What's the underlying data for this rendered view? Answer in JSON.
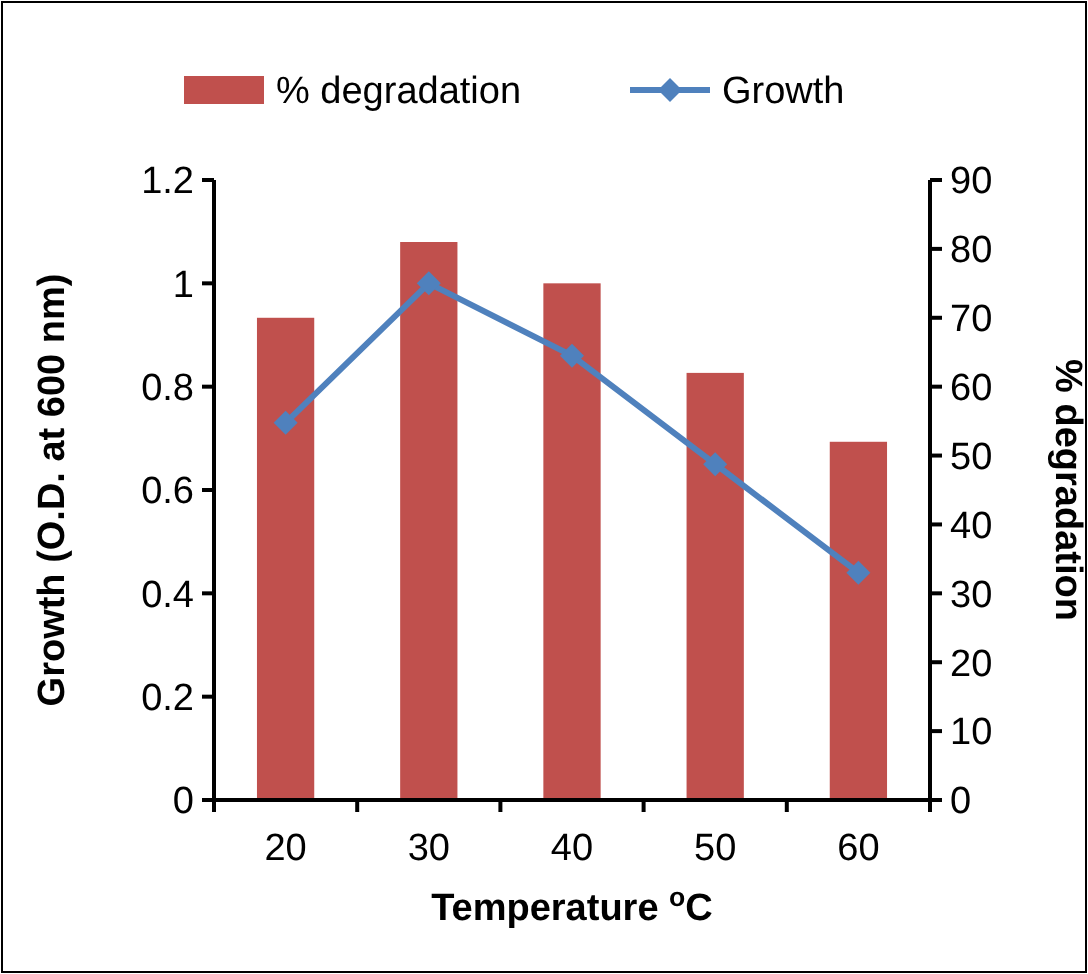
{
  "chart_data": {
    "type": "bar",
    "xlabel": "Temperature $^{o}$C",
    "ylabel": "Growth (O.D. at 600 nm)",
    "y2label": "% degradation",
    "categories": [
      "20",
      "30",
      "40",
      "50",
      "60"
    ],
    "series": [
      {
        "name": "% degradation",
        "axis": "y2",
        "color": "#c0504d",
        "values": [
          70,
          81,
          75,
          62,
          52
        ]
      },
      {
        "name": "Growth",
        "type": "line",
        "axis": "y",
        "color": "#4f81bd",
        "marker": "diamond",
        "values": [
          0.73,
          1.0,
          0.86,
          0.65,
          0.44
        ]
      }
    ],
    "ylim": [
      0,
      1.2
    ],
    "yticks": [
      {
        "value": 0,
        "label": "0"
      },
      {
        "value": 0.2,
        "label": "0.2"
      },
      {
        "value": 0.4,
        "label": "0.4"
      },
      {
        "value": 0.6,
        "label": "0.6"
      },
      {
        "value": 0.8,
        "label": "0.8"
      },
      {
        "value": 1,
        "label": "1"
      },
      {
        "value": 1.2,
        "label": "1.2"
      }
    ],
    "y2lim": [
      0,
      90
    ],
    "y2ticks": [
      0,
      10,
      20,
      30,
      40,
      50,
      60,
      70,
      80,
      90
    ],
    "grid": false,
    "legend": "top"
  }
}
